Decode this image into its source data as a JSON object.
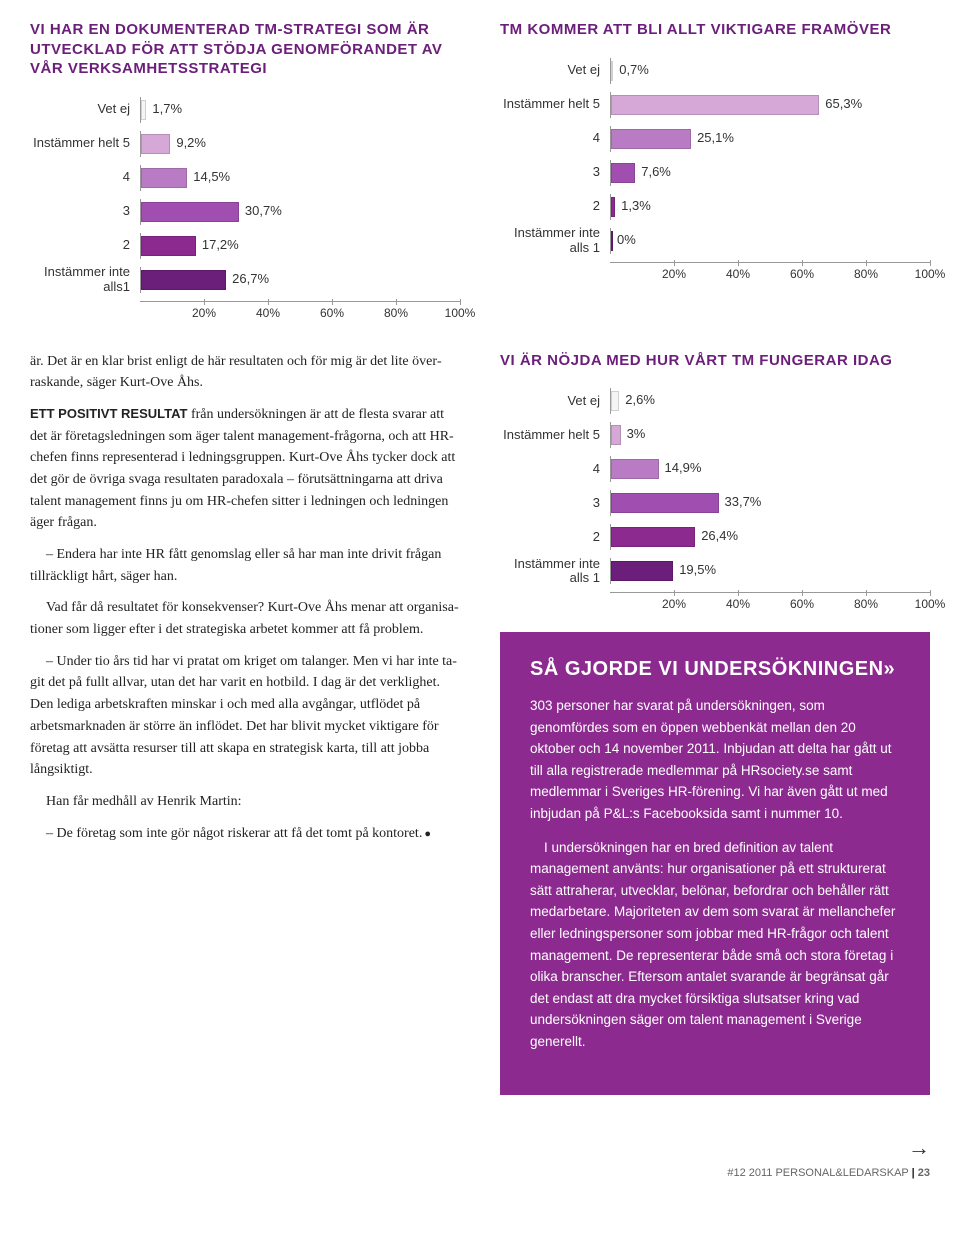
{
  "chart1": {
    "title": "VI HAR EN DOKUMENTERAD TM-STRATEGI SOM ÄR UTVECKLAD FÖR ATT STÖDJA GENOMFÖRANDET AV VÅR VERKSAMHETSSTRATEGI",
    "categories": [
      "Vet ej",
      "Instämmer helt 5",
      "4",
      "3",
      "2",
      "Instämmer inte alls1"
    ],
    "values": [
      "1,7%",
      "9,2%",
      "14,5%",
      "30,7%",
      "17,2%",
      "26,7%"
    ],
    "pct": [
      1.7,
      9.2,
      14.5,
      30.7,
      17.2,
      26.7
    ],
    "colors": [
      "#f5f5f5",
      "#d5a8d8",
      "#b97cc4",
      "#a04fb0",
      "#8c2a8f",
      "#6b1e7a"
    ],
    "xmax": 100,
    "ticks": [
      "20%",
      "40%",
      "60%",
      "80%",
      "100%"
    ],
    "tick_pos": [
      20,
      40,
      60,
      80,
      100
    ]
  },
  "chart2": {
    "title": "TM KOMMER ATT BLI ALLT VIKTIGARE FRAMÖVER",
    "categories": [
      "Vet ej",
      "Instämmer helt 5",
      "4",
      "3",
      "2",
      "Instämmer inte alls 1"
    ],
    "values": [
      "0,7%",
      "65,3%",
      "25,1%",
      "7,6%",
      "1,3%",
      "0%"
    ],
    "pct": [
      0.7,
      65.3,
      25.1,
      7.6,
      1.3,
      0
    ],
    "colors": [
      "#f5f5f5",
      "#d5a8d8",
      "#b97cc4",
      "#a04fb0",
      "#8c2a8f",
      "#6b1e7a"
    ],
    "xmax": 100,
    "ticks": [
      "20%",
      "40%",
      "60%",
      "80%",
      "100%"
    ],
    "tick_pos": [
      20,
      40,
      60,
      80,
      100
    ]
  },
  "chart3": {
    "title": "VI ÄR NÖJDA MED HUR VÅRT TM FUNGERAR IDAG",
    "categories": [
      "Vet ej",
      "Instämmer helt 5",
      "4",
      "3",
      "2",
      "Instämmer inte alls 1"
    ],
    "values": [
      "2,6%",
      "3%",
      "14,9%",
      "33,7%",
      "26,4%",
      "19,5%"
    ],
    "pct": [
      2.6,
      3.0,
      14.9,
      33.7,
      26.4,
      19.5
    ],
    "colors": [
      "#f5f5f5",
      "#d5a8d8",
      "#b97cc4",
      "#a04fb0",
      "#8c2a8f",
      "#6b1e7a"
    ],
    "xmax": 100,
    "ticks": [
      "20%",
      "40%",
      "60%",
      "80%",
      "100%"
    ],
    "tick_pos": [
      20,
      40,
      60,
      80,
      100
    ]
  },
  "body": {
    "p1": "är. Det är en klar brist enligt de här resultaten och för mig är det lite över­raskande, säger Kurt-Ove Åhs.",
    "lead": "ETT POSITIVT RESULTAT",
    "p2": " från undersök­ningen är att de flesta svarar att det är företagsledningen som äger talent ma­nagement-frågorna, och att HR-chefen finns representerad i ledningsgruppen. Kurt-Ove Åhs tycker dock att det gör de övriga svaga resultaten paradoxala – förutsättningarna att driva talent ma­nagement finns ju om HR-chefen sitter i ledningen och ledningen äger frågan.",
    "p3": "– Endera har inte HR fått genom­slag eller så har man inte drivit frågan tillräckligt hårt, säger han.",
    "p4": "Vad får då resultatet för konsekven­ser? Kurt-Ove Åhs menar att organisa­tioner som ligger efter i det strategiska arbetet kommer att få problem.",
    "p5": "– Under tio års tid har vi pratat om kriget om talanger. Men vi har inte ta­git det på fullt allvar, utan det har varit en hotbild. I dag är det verklighet. Den lediga arbetskraften minskar i och med alla avgångar, utflödet på arbetsmark­naden är större än inflödet. Det har blivit mycket viktigare för företag att avsätta resurser till att skapa en strate­gisk karta, till att jobba långsiktigt.",
    "p6": "Han får medhåll av Henrik Martin:",
    "p7": "– De företag som inte gör något riskerar att få det tomt på kontoret."
  },
  "infobox": {
    "title": "SÅ GJORDE VI UNDERSÖKNINGEN»",
    "p1": "303 personer har svarat på undersökningen, som genomfördes som en öppen webbenkät mellan den 20 oktober och 14 november 2011. Inbjudan att delta har gått ut till alla registrerade medlemmar på HRsociety.se samt medlemmar i Sveri­ges HR-förening. Vi har även gått ut med inbjudan på P&L:s Facebooksida samt i nummer 10.",
    "p2": "I undersökningen har en bred definition av talent management använts: hur organisationer på ett strukturerat sätt attraherar, utvecklar, belönar, befordrar och behåller rätt medarbetare. Majoriteten av dem som svarat är mellanchefer eller ledningspersoner som jobbar med HR-frågor och talent management. De repre­senterar både små och stora företag i olika branscher. Eftersom antalet svarande är begränsat går det endast att dra mycket försiktiga slutsatser kring vad undersök­ningen säger om talent management i Sverige generellt."
  },
  "footer": {
    "text": "#12 2011 PERSONAL&LEDARSKAP",
    "page": "23"
  }
}
